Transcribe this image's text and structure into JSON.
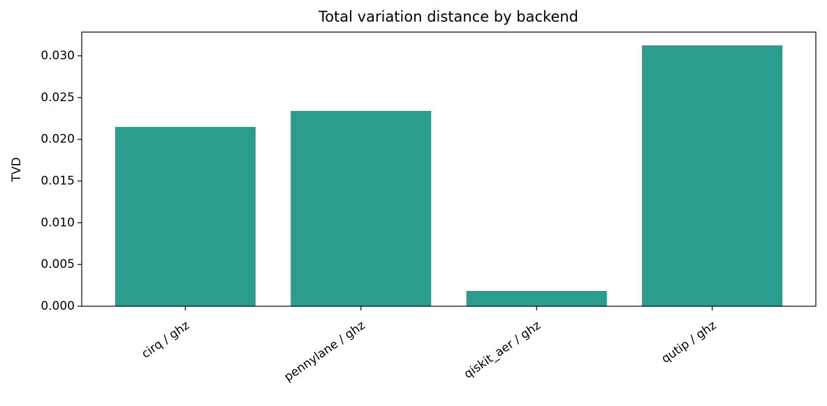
{
  "chart_data": {
    "type": "bar",
    "title": "Total variation distance by backend",
    "ylabel": "TVD",
    "categories": [
      "cirq / ghz",
      "pennylane / ghz",
      "qiskit_aer / ghz",
      "qutip / ghz"
    ],
    "values": [
      0.02148,
      0.0234,
      0.00184,
      0.03125
    ],
    "color": "#2a9d8f",
    "ylim": [
      0,
      0.03284
    ],
    "yticks": [
      {
        "value": 0,
        "label": "0.000"
      },
      {
        "value": 0.005,
        "label": "0.005"
      },
      {
        "value": 0.01,
        "label": "0.010"
      },
      {
        "value": 0.015,
        "label": "0.015"
      },
      {
        "value": 0.02,
        "label": "0.020"
      },
      {
        "value": 0.025,
        "label": "0.025"
      },
      {
        "value": 0.03,
        "label": "0.030"
      }
    ]
  }
}
